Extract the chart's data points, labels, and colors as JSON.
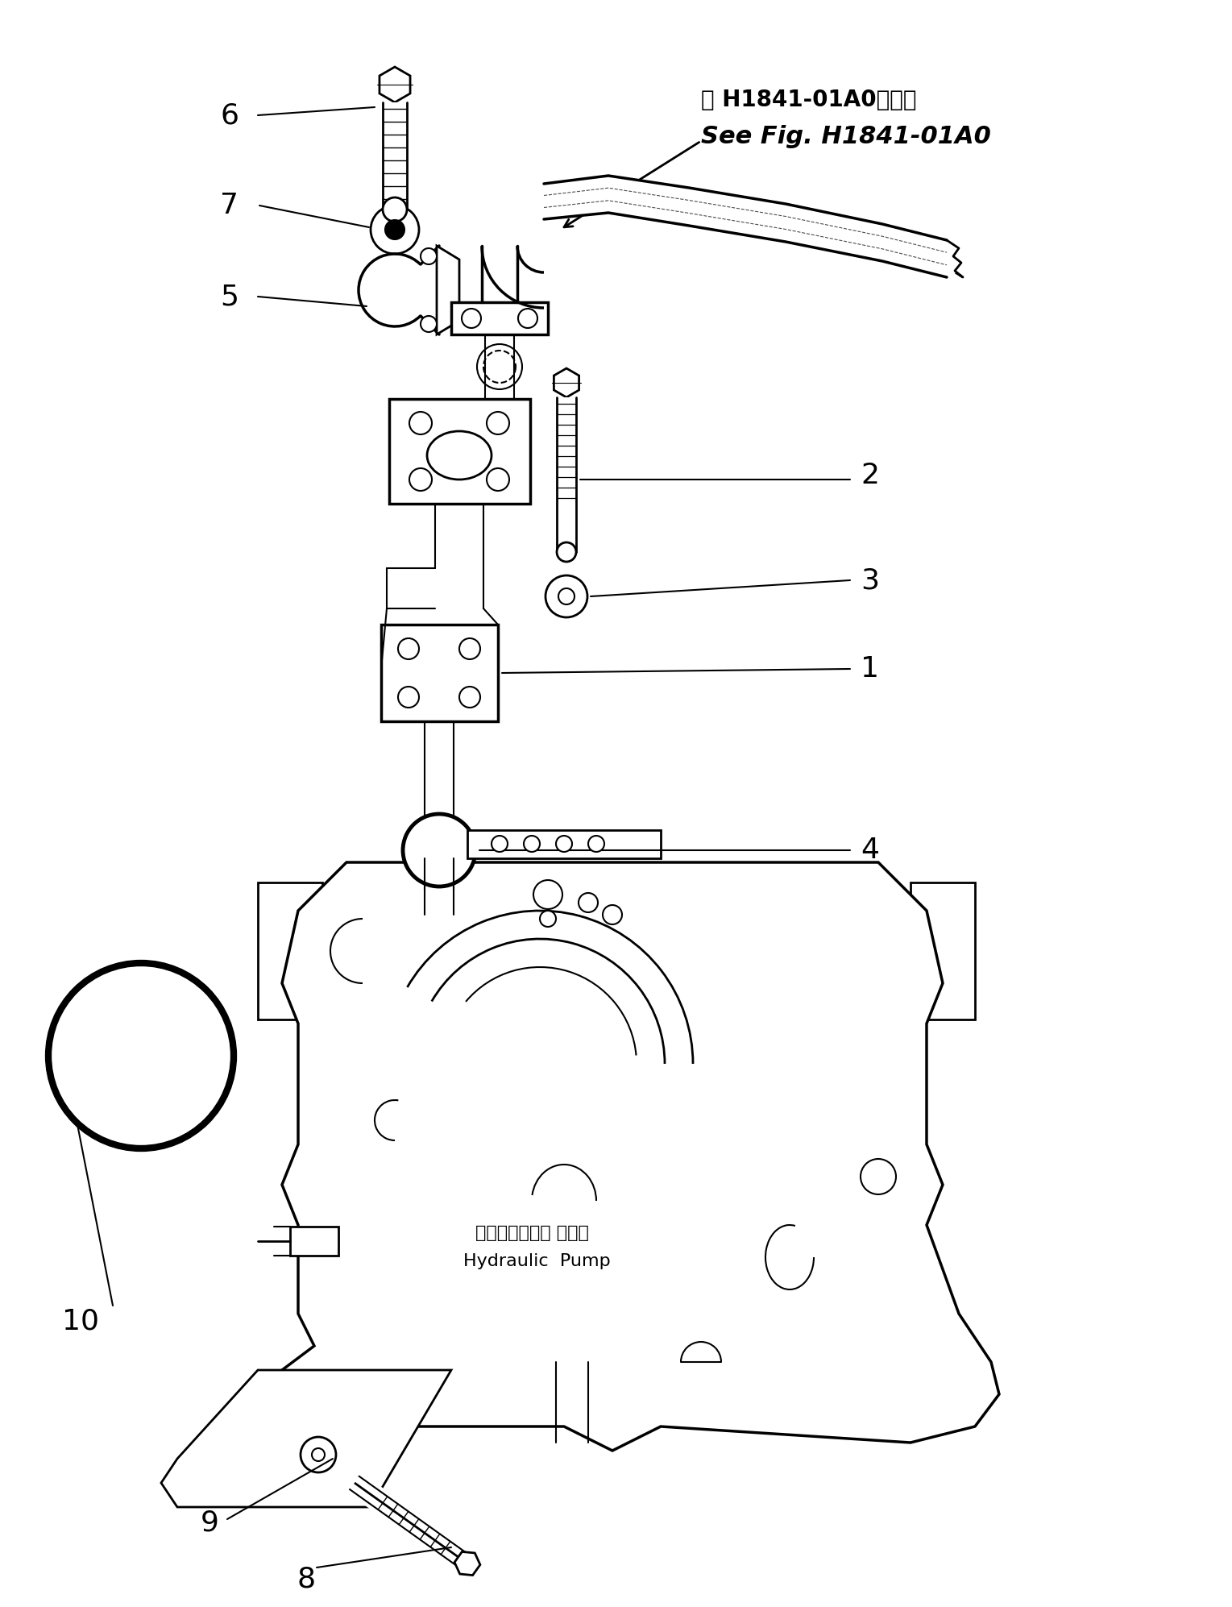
{
  "background_color": "#ffffff",
  "line_color": "#000000",
  "figure_width": 15.29,
  "figure_height": 19.94,
  "dpi": 100,
  "title_jp": "第 H1841-01A0図参照",
  "title_en": "See Fig. H1841-01A0",
  "label_hydraulic_jp": "ハイドロリック ボンプ",
  "label_hydraulic_en": "Hydraulic  Pump"
}
